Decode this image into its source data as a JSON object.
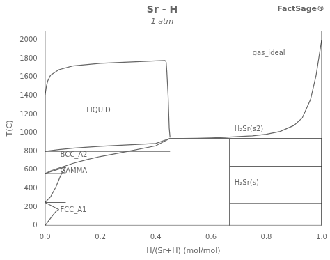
{
  "chart_data": {
    "type": "line",
    "title": "Sr - H",
    "subtitle": "1 atm",
    "xlabel": "H/(Sr+H) (mol/mol)",
    "ylabel": "T(C)",
    "xlim": [
      0,
      1.0
    ],
    "ylim": [
      0,
      2100
    ],
    "xticks": [
      {
        "value": 0,
        "label": "0.0"
      },
      0.2,
      0.4,
      0.6,
      0.8,
      {
        "value": 1.0,
        "label": "1.0"
      }
    ],
    "yticks": [
      0,
      200,
      400,
      600,
      800,
      1000,
      1200,
      1400,
      1600,
      1800,
      2000
    ],
    "grid": false,
    "color": "#666666",
    "series": [
      {
        "x": [
          0.0,
          0.0
        ],
        "values": [
          800,
          1400
        ]
      },
      {
        "x": [
          0.0,
          0.005,
          0.01,
          0.02,
          0.05,
          0.1,
          0.2,
          0.3,
          0.4,
          0.435
        ],
        "values": [
          1400,
          1500,
          1560,
          1620,
          1680,
          1720,
          1748,
          1762,
          1774,
          1778
        ]
      },
      {
        "x": [
          0.435,
          0.438,
          0.44,
          0.445,
          0.449,
          0.452
        ],
        "values": [
          1778,
          1760,
          1680,
          1400,
          1050,
          950
        ]
      },
      {
        "x": [
          0.0,
          0.05,
          0.1,
          0.2,
          0.3,
          0.4,
          0.452
        ],
        "values": [
          800,
          820,
          835,
          855,
          870,
          885,
          940
        ]
      },
      {
        "x": [
          0.452,
          0.5,
          0.55,
          0.6,
          0.65,
          0.667,
          0.7,
          0.75,
          0.8,
          0.85,
          0.9,
          0.93,
          0.96,
          0.98,
          1.0
        ],
        "values": [
          940,
          940,
          942,
          945,
          950,
          955,
          960,
          968,
          985,
          1015,
          1080,
          1160,
          1360,
          1620,
          2000
        ]
      },
      {
        "x": [
          0.0,
          0.02,
          0.05,
          0.08,
          0.1,
          0.15,
          0.2,
          0.3,
          0.4,
          0.452
        ],
        "values": [
          560,
          590,
          620,
          650,
          670,
          710,
          745,
          800,
          860,
          940
        ]
      },
      {
        "x": [
          0.0,
          0.02,
          0.04,
          0.055,
          0.065,
          0.075
        ],
        "values": [
          560,
          580,
          600,
          615,
          623,
          628
        ]
      },
      {
        "x": [
          0.0,
          0.02,
          0.04,
          0.055,
          0.065,
          0.075
        ],
        "values": [
          250,
          310,
          420,
          530,
          590,
          628
        ]
      },
      {
        "x": [
          0.0,
          0.01,
          0.02,
          0.03,
          0.04,
          0.05
        ],
        "values": [
          250,
          235,
          220,
          205,
          188,
          175
        ]
      },
      {
        "x": [
          0.0,
          0.01,
          0.02,
          0.03,
          0.04,
          0.05
        ],
        "values": [
          0,
          40,
          80,
          120,
          155,
          175
        ]
      },
      {
        "x": [
          0.0,
          0.452
        ],
        "values": [
          800,
          800
        ]
      },
      {
        "x": [
          0.0,
          0.075
        ],
        "values": [
          560,
          560
        ]
      },
      {
        "x": [
          0.0,
          0.075
        ],
        "values": [
          250,
          250
        ]
      },
      {
        "x": [
          0.667,
          0.667
        ],
        "values": [
          0,
          940
        ]
      },
      {
        "x": [
          0.452,
          1.0
        ],
        "values": [
          940,
          940
        ]
      },
      {
        "x": [
          0.667,
          1.0
        ],
        "values": [
          640,
          640
        ]
      },
      {
        "x": [
          0.667,
          1.0
        ],
        "values": [
          240,
          240
        ]
      },
      {
        "x": [
          1.0,
          1.0
        ],
        "values": [
          0,
          940
        ]
      }
    ],
    "annotations": [
      {
        "text": "LIQUID",
        "x": 0.15,
        "y": 1220
      },
      {
        "text": "gas_ideal",
        "x": 0.75,
        "y": 1840
      },
      {
        "text": "BCC_A2",
        "x": 0.055,
        "y": 740
      },
      {
        "text": "GAMMA",
        "x": 0.055,
        "y": 570
      },
      {
        "text": "FCC_A1",
        "x": 0.055,
        "y": 145
      },
      {
        "text": "H₂Sr(s2)",
        "x": 0.685,
        "y": 1020
      },
      {
        "text": "H₂Sr(s)",
        "x": 0.685,
        "y": 440
      },
      {
        "text": "FactSage®"
      }
    ]
  }
}
